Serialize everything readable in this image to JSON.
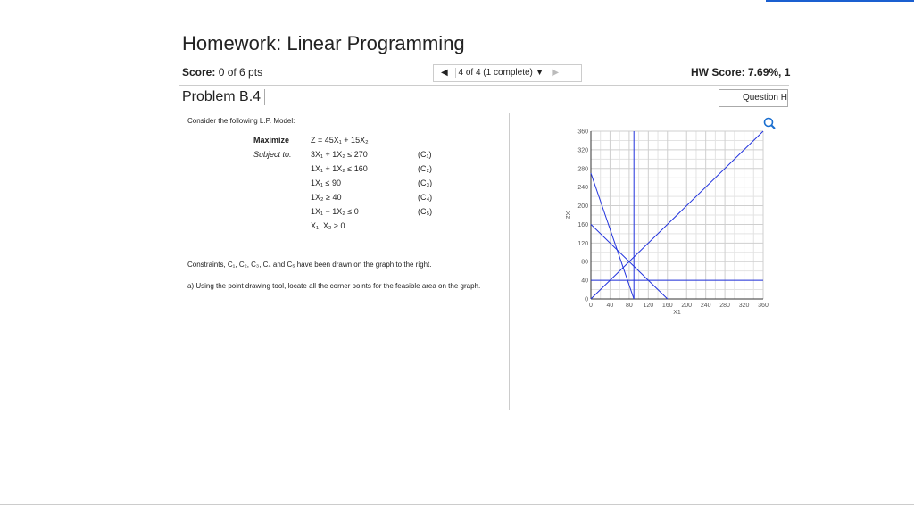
{
  "header": {
    "title": "Homework: Linear Programming",
    "score_label": "Score:",
    "score": "0 of 6 pts",
    "nav": "4 of 4 (1 complete)",
    "hw_score": "HW Score: 7.69%, 1"
  },
  "problem": {
    "title": "Problem B.4",
    "help": "Question H",
    "intro": "Consider the following L.P. Model:",
    "model": [
      [
        "Maximize",
        "Z = 45X₁ + 15X₂",
        ""
      ],
      [
        "Subject to:",
        "3X₁ + 1X₂ ≤ 270",
        "(C₁)"
      ],
      [
        "",
        "1X₁ + 1X₂ ≤ 160",
        "(C₂)"
      ],
      [
        "",
        "1X₁ ≤ 90",
        "(C₃)"
      ],
      [
        "",
        "1X₂ ≥ 40",
        "(C₄)"
      ],
      [
        "",
        "1X₁ − 1X₂ ≤ 0",
        "(C₅)"
      ],
      [
        "",
        "X₁, X₂ ≥ 0",
        ""
      ]
    ],
    "note": "Constraints, C₁, C₂, C₃, C₄ and C₅ have been drawn on the graph to the right.",
    "question_em": "Using the point drawing tool,",
    "question": "a) Using the point drawing tool, locate all the corner points for the feasible area on the graph."
  },
  "graph": {
    "x_label": "X1",
    "y_label": "X2",
    "xlim": [
      0,
      360
    ],
    "ylim": [
      0,
      360
    ],
    "xticks": [
      0,
      40,
      80,
      120,
      160,
      200,
      240,
      280,
      320,
      360
    ],
    "yticks": [
      0,
      40,
      80,
      120,
      160,
      200,
      240,
      280,
      320,
      360
    ]
  }
}
